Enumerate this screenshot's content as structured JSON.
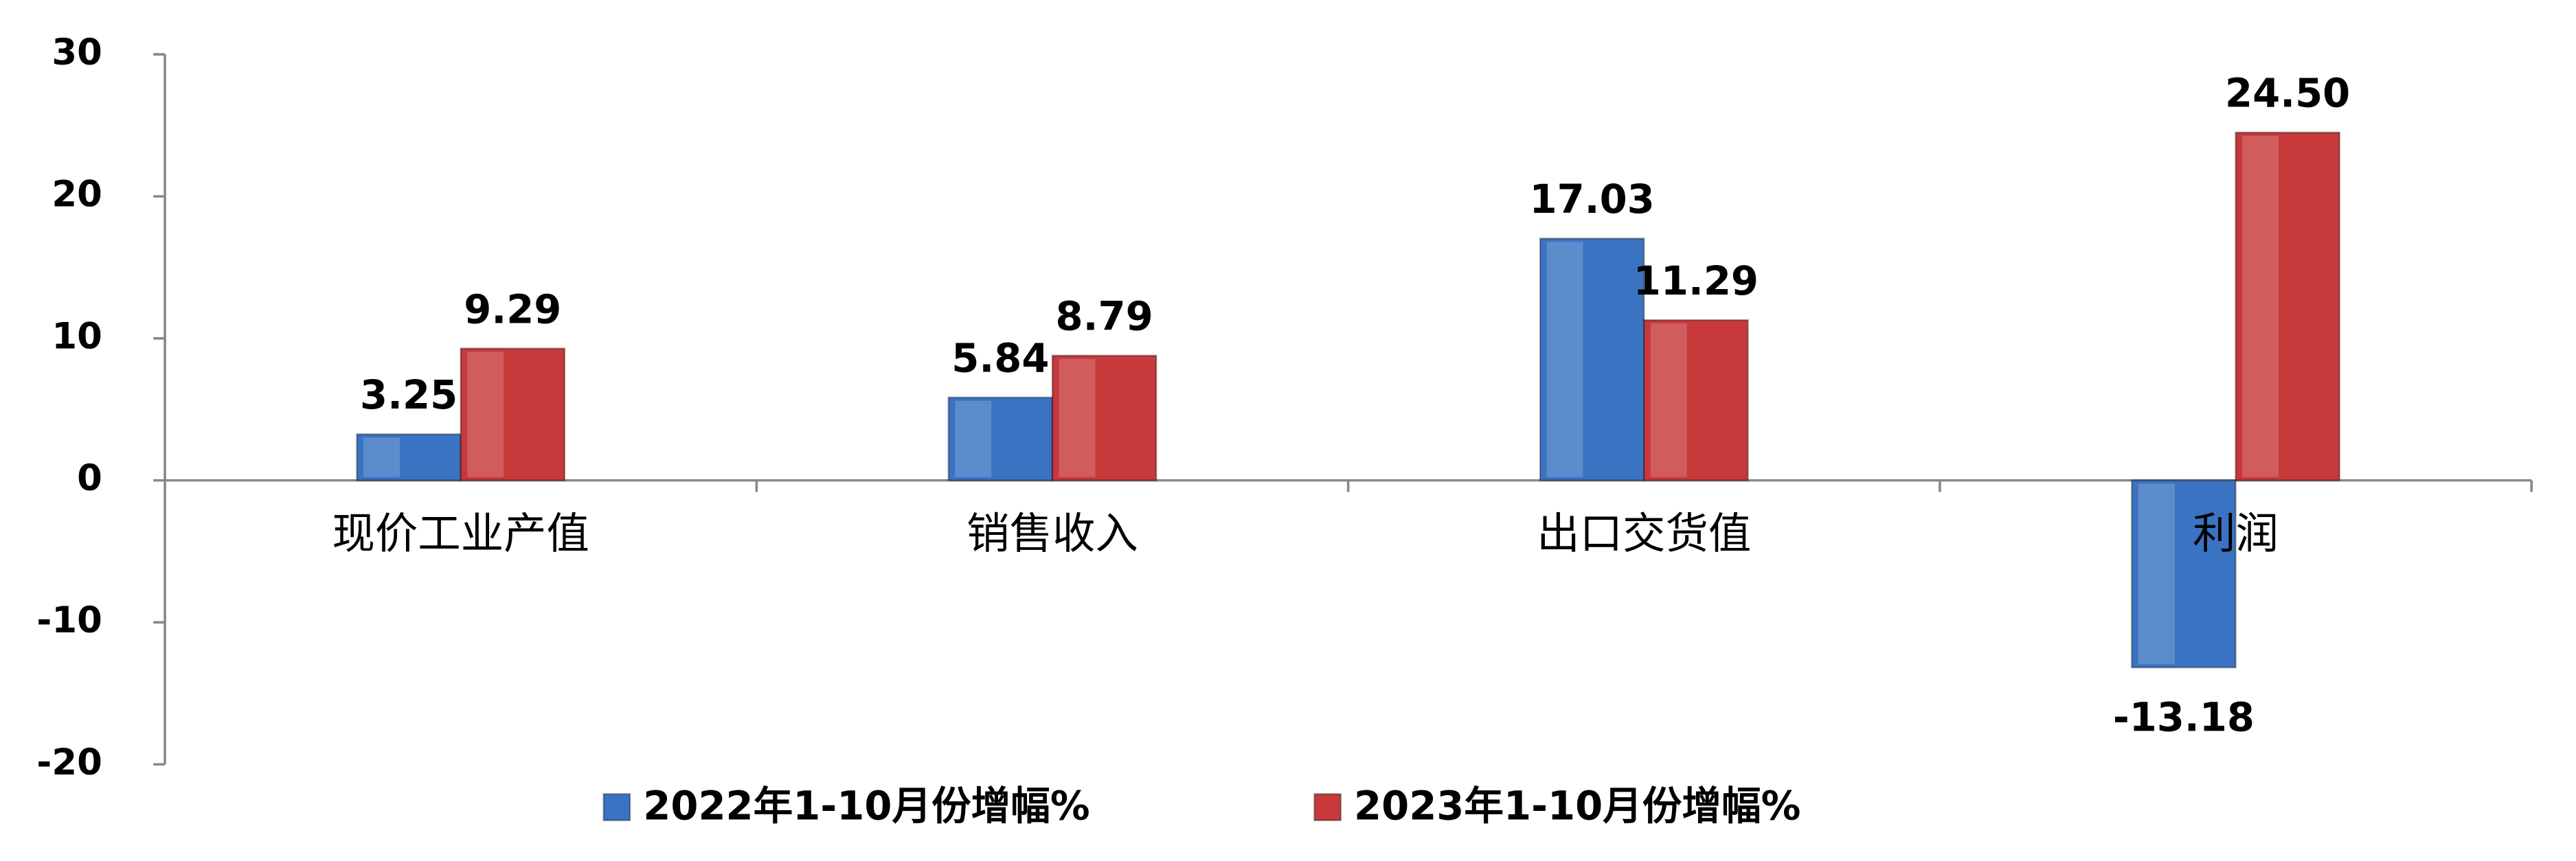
{
  "chart_data": {
    "type": "bar",
    "categories": [
      "现价工业产值",
      "销售收入",
      "出口交货值",
      "利润"
    ],
    "series": [
      {
        "name": "2022年1-10月份增幅%",
        "color": "#3a73c2",
        "values": [
          3.25,
          5.84,
          17.03,
          -13.18
        ],
        "value_labels": [
          "3.25",
          "5.84",
          "17.03",
          "-13.18"
        ]
      },
      {
        "name": "2023年1-10月份增幅%",
        "color": "#c7393a",
        "values": [
          9.29,
          8.79,
          11.29,
          24.5
        ],
        "value_labels": [
          "9.29",
          "8.79",
          "11.29",
          "24.50"
        ]
      }
    ],
    "ylim": [
      -20,
      30
    ],
    "yticks": [
      -20,
      -10,
      0,
      10,
      20,
      30
    ],
    "grid": false,
    "legend": "bottom"
  }
}
